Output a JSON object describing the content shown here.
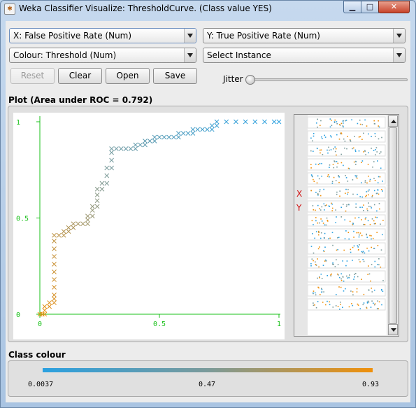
{
  "window": {
    "title": "Weka Classifier Visualize: ThresholdCurve. (Class value YES)",
    "app_icon": "weka-icon",
    "controls": {
      "minimize": "minimize-icon",
      "maximize": "maximize-icon",
      "close": "close-icon"
    }
  },
  "selectors": {
    "x_axis": "X: False Positive Rate (Num)",
    "y_axis": "Y: True Positive Rate (Num)",
    "colour": "Colour: Threshold (Num)",
    "instance": "Select Instance"
  },
  "buttons": {
    "reset": "Reset",
    "clear": "Clear",
    "open": "Open",
    "save": "Save"
  },
  "jitter": {
    "label": "Jitter",
    "value": 0
  },
  "plot": {
    "title": "Plot (Area under ROC = 0.792)",
    "x_ticks": [
      "0",
      "0.5",
      "1"
    ],
    "y_ticks": [
      "0",
      "0.5",
      "1"
    ],
    "axis_markers": {
      "x": "X",
      "y": "Y"
    }
  },
  "chart_data": {
    "type": "line",
    "title": "Plot (Area under ROC = 0.792)",
    "xlabel": "False Positive Rate",
    "ylabel": "True Positive Rate",
    "xlim": [
      0,
      1
    ],
    "ylim": [
      0,
      1
    ],
    "x_ticks": [
      0,
      0.5,
      1
    ],
    "y_ticks": [
      0,
      0.5,
      1
    ],
    "colour_attribute": "Threshold",
    "colour_min": 0.0037,
    "colour_mid": 0.47,
    "colour_max": 0.93,
    "points": [
      [
        0.0,
        0.0
      ],
      [
        0.01,
        0.0
      ],
      [
        0.02,
        0.0
      ],
      [
        0.02,
        0.02
      ],
      [
        0.02,
        0.04
      ],
      [
        0.04,
        0.04
      ],
      [
        0.04,
        0.06
      ],
      [
        0.06,
        0.06
      ],
      [
        0.06,
        0.08
      ],
      [
        0.06,
        0.1
      ],
      [
        0.06,
        0.14
      ],
      [
        0.06,
        0.18
      ],
      [
        0.06,
        0.22
      ],
      [
        0.06,
        0.26
      ],
      [
        0.06,
        0.3
      ],
      [
        0.06,
        0.34
      ],
      [
        0.06,
        0.38
      ],
      [
        0.06,
        0.41
      ],
      [
        0.08,
        0.41
      ],
      [
        0.1,
        0.41
      ],
      [
        0.1,
        0.43
      ],
      [
        0.12,
        0.43
      ],
      [
        0.12,
        0.45
      ],
      [
        0.14,
        0.45
      ],
      [
        0.14,
        0.47
      ],
      [
        0.16,
        0.47
      ],
      [
        0.18,
        0.47
      ],
      [
        0.2,
        0.47
      ],
      [
        0.2,
        0.49
      ],
      [
        0.2,
        0.51
      ],
      [
        0.22,
        0.51
      ],
      [
        0.22,
        0.54
      ],
      [
        0.22,
        0.56
      ],
      [
        0.24,
        0.56
      ],
      [
        0.24,
        0.59
      ],
      [
        0.24,
        0.62
      ],
      [
        0.24,
        0.65
      ],
      [
        0.26,
        0.65
      ],
      [
        0.26,
        0.68
      ],
      [
        0.28,
        0.68
      ],
      [
        0.28,
        0.72
      ],
      [
        0.28,
        0.76
      ],
      [
        0.3,
        0.76
      ],
      [
        0.3,
        0.8
      ],
      [
        0.3,
        0.84
      ],
      [
        0.3,
        0.86
      ],
      [
        0.32,
        0.86
      ],
      [
        0.34,
        0.86
      ],
      [
        0.36,
        0.86
      ],
      [
        0.38,
        0.86
      ],
      [
        0.4,
        0.86
      ],
      [
        0.4,
        0.88
      ],
      [
        0.42,
        0.88
      ],
      [
        0.44,
        0.88
      ],
      [
        0.44,
        0.9
      ],
      [
        0.46,
        0.9
      ],
      [
        0.48,
        0.9
      ],
      [
        0.48,
        0.92
      ],
      [
        0.5,
        0.92
      ],
      [
        0.52,
        0.92
      ],
      [
        0.54,
        0.92
      ],
      [
        0.56,
        0.92
      ],
      [
        0.58,
        0.92
      ],
      [
        0.58,
        0.94
      ],
      [
        0.6,
        0.94
      ],
      [
        0.62,
        0.94
      ],
      [
        0.64,
        0.94
      ],
      [
        0.64,
        0.96
      ],
      [
        0.66,
        0.96
      ],
      [
        0.68,
        0.96
      ],
      [
        0.7,
        0.96
      ],
      [
        0.72,
        0.96
      ],
      [
        0.72,
        0.98
      ],
      [
        0.74,
        0.98
      ],
      [
        0.74,
        1.0
      ],
      [
        0.78,
        1.0
      ],
      [
        0.82,
        1.0
      ],
      [
        0.86,
        1.0
      ],
      [
        0.9,
        1.0
      ],
      [
        0.94,
        1.0
      ],
      [
        0.98,
        1.0
      ],
      [
        1.0,
        1.0
      ]
    ]
  },
  "thumbnails": {
    "count": 14
  },
  "class_colour": {
    "title": "Class colour",
    "min_label": "0.0037",
    "mid_label": "0.47",
    "max_label": "0.93",
    "colors": {
      "low": "#2aa0e0",
      "mid": "#7a9a9a",
      "high": "#f0900a"
    }
  },
  "colors": {
    "axis": "#18c018",
    "marker": "#d01010"
  }
}
